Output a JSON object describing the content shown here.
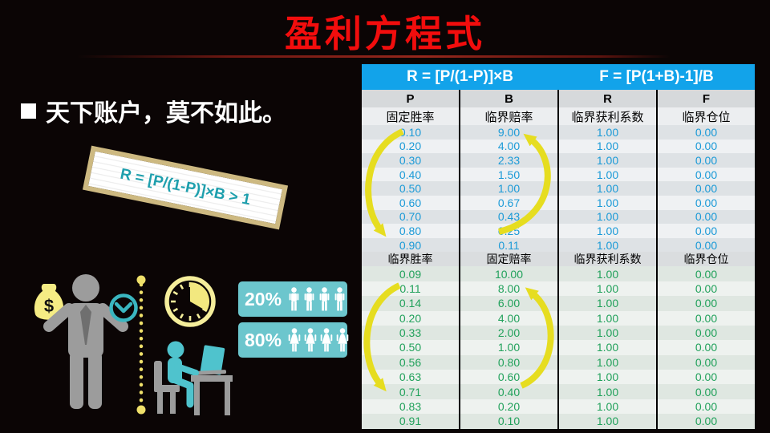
{
  "slide": {
    "title": "盈利方程式",
    "bullet_text": "天下账户，莫不如此。",
    "formula_note": "R = [P/(1-P)]×B > 1"
  },
  "stats": {
    "winners_pct": "20%",
    "losers_pct": "80%",
    "winners_icon": "male-figure",
    "losers_icon": "female-figure",
    "winners_icon_count": 4,
    "losers_icon_count": 4
  },
  "icons": {
    "left_group": [
      "money-bag-icon",
      "businessman-icon",
      "chevron-clock-icon",
      "dotted-divider",
      "timer-clock-icon",
      "person-at-desk-icon"
    ],
    "table_overlays": [
      "curved-arrow-down",
      "curved-arrow-up",
      "curved-arrow-down",
      "curved-arrow-up"
    ]
  },
  "table": {
    "formula_headers": [
      "R = [P/(1-P)]×B",
      "F = [P(1+B)-1]/B"
    ],
    "letter_headers": [
      "P",
      "B",
      "R",
      "F"
    ],
    "section1": {
      "headers": [
        "固定胜率",
        "临界赔率",
        "临界获利系数",
        "临界仓位"
      ],
      "rows": [
        [
          "0.10",
          "9.00",
          "1.00",
          "0.00"
        ],
        [
          "0.20",
          "4.00",
          "1.00",
          "0.00"
        ],
        [
          "0.30",
          "2.33",
          "1.00",
          "0.00"
        ],
        [
          "0.40",
          "1.50",
          "1.00",
          "0.00"
        ],
        [
          "0.50",
          "1.00",
          "1.00",
          "0.00"
        ],
        [
          "0.60",
          "0.67",
          "1.00",
          "0.00"
        ],
        [
          "0.70",
          "0.43",
          "1.00",
          "0.00"
        ],
        [
          "0.80",
          "0.25",
          "1.00",
          "0.00"
        ],
        [
          "0.90",
          "0.11",
          "1.00",
          "0.00"
        ]
      ]
    },
    "section2": {
      "headers": [
        "临界胜率",
        "固定赔率",
        "临界获利系数",
        "临界仓位"
      ],
      "rows": [
        [
          "0.09",
          "10.00",
          "1.00",
          "0.00"
        ],
        [
          "0.11",
          "8.00",
          "1.00",
          "0.00"
        ],
        [
          "0.14",
          "6.00",
          "1.00",
          "0.00"
        ],
        [
          "0.20",
          "4.00",
          "1.00",
          "0.00"
        ],
        [
          "0.33",
          "2.00",
          "1.00",
          "0.00"
        ],
        [
          "0.50",
          "1.00",
          "1.00",
          "0.00"
        ],
        [
          "0.56",
          "0.80",
          "1.00",
          "0.00"
        ],
        [
          "0.63",
          "0.60",
          "1.00",
          "0.00"
        ],
        [
          "0.71",
          "0.40",
          "1.00",
          "0.00"
        ],
        [
          "0.83",
          "0.20",
          "1.00",
          "0.00"
        ],
        [
          "0.91",
          "0.10",
          "1.00",
          "0.00"
        ]
      ]
    }
  },
  "colors": {
    "title_red": "#f20d0d",
    "header_blue": "#12a3ea",
    "value_blue": "#1b9ad7",
    "value_green": "#21a15b",
    "accent_teal": "#6cc6cd",
    "note_teal": "#1e9fad",
    "arrow_yellow": "#e6dd20",
    "icon_yellow": "#f5ec84",
    "icon_gray": "#9c9c9c"
  }
}
